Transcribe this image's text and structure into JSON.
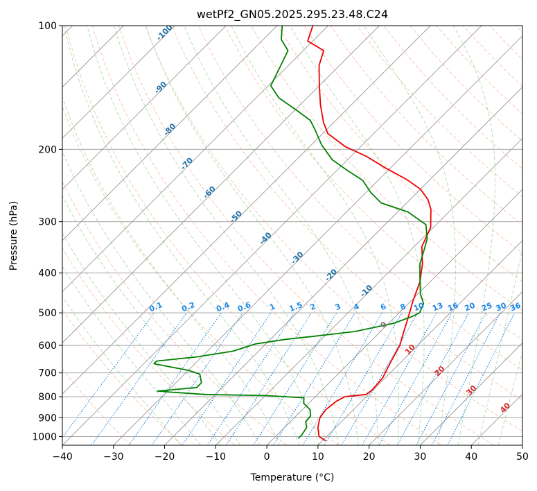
{
  "chart_data": {
    "type": "line",
    "title": "wetPf2_GN05.2025.295.23.48.C24",
    "xlabel": "Temperature (°C)",
    "ylabel": "Pressure (hPa)",
    "xlim": [
      -40,
      50
    ],
    "ylim": [
      1050,
      100
    ],
    "y_scale": "log",
    "grid": true,
    "x_ticks": [
      -40,
      -30,
      -20,
      -10,
      0,
      10,
      20,
      30,
      40,
      50
    ],
    "y_ticks": [
      100,
      200,
      300,
      400,
      500,
      600,
      700,
      800,
      900,
      1000
    ],
    "skew_T": true,
    "series": [
      {
        "role": "temperature",
        "color": "#ee0000",
        "points": [
          [
            10.7,
            1025
          ],
          [
            8.5,
            1000
          ],
          [
            6.5,
            950
          ],
          [
            5.0,
            900
          ],
          [
            4.6,
            860
          ],
          [
            5.0,
            820
          ],
          [
            5.8,
            800
          ],
          [
            9.5,
            790
          ],
          [
            9.8,
            770
          ],
          [
            9.5,
            720
          ],
          [
            8.0,
            660
          ],
          [
            6.5,
            600
          ],
          [
            5.2,
            570
          ],
          [
            3.0,
            520
          ],
          [
            0.5,
            470
          ],
          [
            -2.0,
            420
          ],
          [
            -5.0,
            380
          ],
          [
            -8.5,
            345
          ],
          [
            -10.5,
            310
          ],
          [
            -14.0,
            280
          ],
          [
            -16.5,
            265
          ],
          [
            -20.0,
            250
          ],
          [
            -24.5,
            237
          ],
          [
            -31.0,
            222
          ],
          [
            -37.0,
            208
          ],
          [
            -43.0,
            197
          ],
          [
            -49.0,
            183
          ],
          [
            -52.0,
            172
          ],
          [
            -56.0,
            156
          ],
          [
            -60.0,
            140
          ],
          [
            -64.0,
            125
          ],
          [
            -66.0,
            115
          ],
          [
            -71.0,
            109
          ],
          [
            -73.0,
            100
          ]
        ]
      },
      {
        "role": "dewpoint",
        "color": "#008000",
        "points": [
          [
            4.8,
            1010
          ],
          [
            4.8,
            990
          ],
          [
            4.3,
            950
          ],
          [
            3.0,
            920
          ],
          [
            2.8,
            890
          ],
          [
            1.5,
            860
          ],
          [
            -1.0,
            830
          ],
          [
            -2.0,
            805
          ],
          [
            -10.0,
            795
          ],
          [
            -22.0,
            790
          ],
          [
            -29.0,
            780
          ],
          [
            -32.0,
            775
          ],
          [
            -25.0,
            760
          ],
          [
            -25.0,
            740
          ],
          [
            -27.0,
            705
          ],
          [
            -30.0,
            690
          ],
          [
            -38.0,
            665
          ],
          [
            -38.0,
            655
          ],
          [
            -31.0,
            640
          ],
          [
            -25.0,
            620
          ],
          [
            -22.0,
            595
          ],
          [
            -17.0,
            580
          ],
          [
            -12.0,
            570
          ],
          [
            -5.0,
            555
          ],
          [
            1.0,
            530
          ],
          [
            3.3,
            510
          ],
          [
            4.0,
            500
          ],
          [
            3.0,
            475
          ],
          [
            0.5,
            450
          ],
          [
            -2.0,
            420
          ],
          [
            -5.5,
            380
          ],
          [
            -7.5,
            350
          ],
          [
            -9.0,
            330
          ],
          [
            -12.0,
            305
          ],
          [
            -18.0,
            284
          ],
          [
            -25.0,
            270
          ],
          [
            -29.0,
            255
          ],
          [
            -33.0,
            238
          ],
          [
            -38.0,
            225
          ],
          [
            -43.0,
            212
          ],
          [
            -48.0,
            195
          ],
          [
            -52.0,
            180
          ],
          [
            -55.0,
            170
          ],
          [
            -60.0,
            160
          ],
          [
            -65.5,
            150
          ],
          [
            -69.5,
            140
          ],
          [
            -71.5,
            125
          ],
          [
            -73.0,
            115
          ],
          [
            -76.5,
            108
          ],
          [
            -79.0,
            100
          ]
        ]
      }
    ],
    "annotations": {
      "dry_adiabat_labels": [
        "-100",
        "-90",
        "-80",
        "-70",
        "-60",
        "-50",
        "-40",
        "-30",
        "-20",
        "-10"
      ],
      "mixing_ratio_labels": [
        "0.1",
        "0.2",
        "0.4",
        "0.6",
        "1",
        "1.5",
        "2",
        "3",
        "4",
        "6",
        "8",
        "10",
        "13",
        "16",
        "20",
        "25",
        "30",
        "36"
      ],
      "wet_bulb_labels": [
        "0",
        "10",
        "20",
        "30",
        "40"
      ]
    }
  },
  "styles": {
    "isotherm_color": "#999999",
    "isobar_color": "#999999",
    "dry_adiabat_color": "#f4a582",
    "moist_adiabat_color": "#88c488",
    "mixing_ratio_color": "#1e88e5",
    "dry_label_color": "#1f6fa8",
    "wet_label_color": "#d62728",
    "zero_wet_label_color": "#777777"
  }
}
